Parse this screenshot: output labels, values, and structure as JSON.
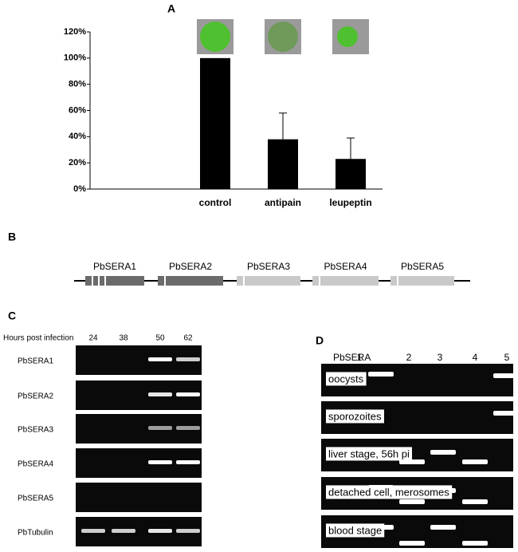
{
  "chart_data": {
    "type": "bar",
    "panel_label": "A",
    "categories": [
      "control",
      "antipain",
      "leupeptin"
    ],
    "values": [
      100,
      38,
      23
    ],
    "errors": [
      null,
      20,
      16
    ],
    "color": "#000000",
    "ylim": [
      0,
      120
    ],
    "yticks": [
      {
        "value": 0,
        "label": "0%"
      },
      {
        "value": 20,
        "label": "20%"
      },
      {
        "value": 40,
        "label": "40%"
      },
      {
        "value": 60,
        "label": "60%"
      },
      {
        "value": 80,
        "label": "80%"
      },
      {
        "value": 100,
        "label": "100%"
      },
      {
        "value": 120,
        "label": "120%"
      }
    ]
  },
  "panel_b": {
    "label": "B",
    "genes": [
      "PbSERA1",
      "PbSERA2",
      "PbSERA3",
      "PbSERA4",
      "PbSERA5"
    ]
  },
  "panel_c": {
    "label": "C",
    "axis_title": "Hours post infection",
    "timepoints": [
      "24",
      "38",
      "50",
      "62"
    ],
    "genes": [
      "PbSERA1",
      "PbSERA2",
      "PbSERA3",
      "PbSERA4",
      "PbSERA5",
      "PbTubulin"
    ]
  },
  "panel_d": {
    "label": "D",
    "axis_title": "PbSERA",
    "lanes": [
      "1",
      "2",
      "3",
      "4",
      "5"
    ],
    "samples": [
      "oocysts",
      "sporozoites",
      "liver stage, 56h pi",
      "detached cell, merosomes",
      "blood stage"
    ]
  }
}
